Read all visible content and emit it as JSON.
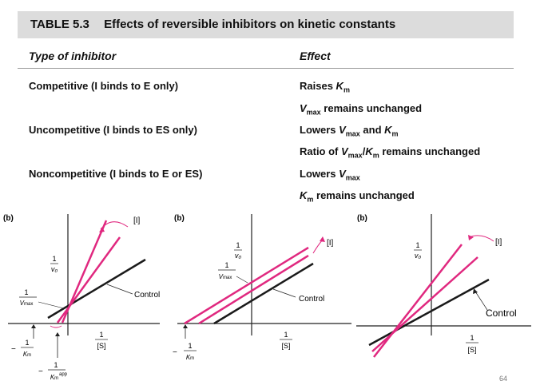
{
  "table": {
    "number": "TABLE 5.3",
    "title": "Effects of reversible inhibitors on kinetic constants",
    "col_type": "Type of inhibitor",
    "col_effect": "Effect",
    "rows": [
      {
        "type": "Competitive (I binds to E only)",
        "effects": [
          "Raises Km",
          "Vmax remains unchanged"
        ]
      },
      {
        "type": "Uncompetitive (I binds to ES only)",
        "effects": [
          "Lowers Vmax and Km",
          "Ratio of Vmax/Km remains unchanged"
        ]
      },
      {
        "type": "Noncompetitive (I binds to E or ES)",
        "effects": [
          "Lowers Vmax",
          "Km remains unchanged"
        ]
      }
    ]
  },
  "plots": {
    "plot1": {
      "label": "(b)",
      "inhibitor": "[I]",
      "control": "Control",
      "y_axis": "1/v0",
      "x_axis": "1/[S]",
      "y_intercept": "1/Vmax",
      "x_intercept_control": "−1/Km",
      "x_intercept_inhibited": "−1/Km app"
    },
    "plot2": {
      "label": "(b)",
      "inhibitor": "[I]",
      "control": "Control",
      "y_axis": "1/v0",
      "x_axis": "1/[S]",
      "y_intercept": "1/Vmax",
      "x_intercept": "−1/Km"
    },
    "plot3": {
      "label": "(b)",
      "inhibitor": "[I]",
      "control": "Control",
      "y_axis": "1/v0",
      "x_axis": "1/[S]"
    }
  },
  "colors": {
    "inhibited": "#e0287f",
    "control": "#1a1a1a",
    "header_bg": "#dcdcdc"
  },
  "page_number": "64"
}
